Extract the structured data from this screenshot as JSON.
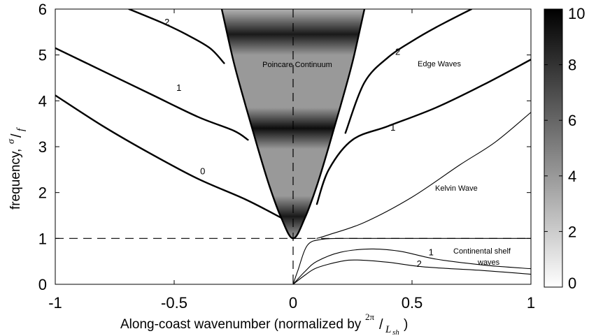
{
  "chart_data": {
    "type": "line",
    "xlabel": "Along-coast wavenumber (normalized by",
    "xlabel_fraction_num": "2π",
    "xlabel_fraction_den": "L",
    "xlabel_fraction_sub": "sh",
    "xlabel_close": ")",
    "ylabel": "frequency,",
    "ylabel_fraction_num": "σ",
    "ylabel_fraction_den": "f",
    "xlim": [
      -1,
      1
    ],
    "ylim": [
      0,
      6
    ],
    "x_ticks": [
      -1,
      -0.5,
      0,
      0.5,
      1
    ],
    "x_tick_labels": [
      "-1",
      "-0.5",
      "0",
      "0.5",
      "1"
    ],
    "y_ticks": [
      0,
      1,
      2,
      3,
      4,
      5,
      6
    ],
    "y_tick_labels": [
      "0",
      "1",
      "2",
      "3",
      "4",
      "5",
      "6"
    ],
    "grid": false,
    "annotations": {
      "poincare": "Poincare Continuum",
      "edge_waves": "Edge Waves",
      "kelvin": "Kelvin Wave",
      "shelf_line1": "Continental shelf",
      "shelf_line2": "waves"
    },
    "colorbar": {
      "range": [
        0,
        10
      ],
      "ticks": [
        0,
        2,
        4,
        6,
        8,
        10
      ],
      "tick_labels": [
        "0",
        "2",
        "4",
        "6",
        "8",
        "10"
      ],
      "colors": [
        "#ffffff",
        "#000000"
      ]
    },
    "poincare_boundary": {
      "min_frequency": 1,
      "x": [
        -0.3,
        -0.25,
        -0.2,
        -0.15,
        -0.1,
        -0.05,
        0,
        0.05,
        0.1,
        0.15,
        0.2,
        0.25,
        0.3
      ],
      "y": [
        6.0,
        4.85,
        3.9,
        3.0,
        2.15,
        1.45,
        1.0,
        1.45,
        2.15,
        3.0,
        3.9,
        4.85,
        6.0
      ]
    },
    "intensity_bands": [
      {
        "y": 5.45,
        "level": 9
      },
      {
        "y": 3.4,
        "level": 9.5
      },
      {
        "y": 1.48,
        "level": 9
      }
    ],
    "series": [
      {
        "label": "0",
        "style": "bold",
        "x": [
          -1,
          -0.8,
          -0.6,
          -0.4,
          -0.2,
          -0.05
        ],
        "y": [
          4.12,
          3.45,
          2.85,
          2.3,
          1.85,
          1.45
        ]
      },
      {
        "label": "1",
        "style": "bold",
        "x": [
          -1,
          -0.8,
          -0.6,
          -0.4,
          -0.25,
          -0.19
        ],
        "y": [
          5.15,
          4.65,
          4.15,
          3.65,
          3.35,
          3.15
        ]
      },
      {
        "label": "2",
        "style": "bold",
        "x": [
          -0.69,
          -0.55,
          -0.45,
          -0.35,
          -0.29
        ],
        "y": [
          6.0,
          5.7,
          5.45,
          5.15,
          4.82
        ]
      },
      {
        "label": "1",
        "style": "bold",
        "x": [
          0.1,
          0.15,
          0.25,
          0.4,
          0.6,
          0.8,
          1.0
        ],
        "y": [
          1.75,
          2.5,
          3.15,
          3.45,
          3.85,
          4.35,
          4.9
        ]
      },
      {
        "label": "2",
        "style": "bold",
        "x": [
          0.22,
          0.3,
          0.4,
          0.5,
          0.6,
          0.75
        ],
        "y": [
          3.3,
          4.4,
          4.95,
          5.3,
          5.6,
          6.0
        ]
      },
      {
        "label": "Kelvin",
        "style": "thin",
        "x": [
          0.1,
          0.15,
          0.3,
          0.5,
          0.7,
          0.85,
          1.0
        ],
        "y": [
          1.0,
          1.08,
          1.35,
          1.9,
          2.6,
          3.1,
          3.75
        ]
      },
      {
        "label": "shelf-0",
        "style": "thin",
        "x": [
          0,
          0.02,
          0.06,
          0.12,
          0.2,
          0.3,
          0.45,
          0.6,
          0.8,
          1.0
        ],
        "y": [
          0,
          0.3,
          0.85,
          0.98,
          1.0,
          1.0,
          1.0,
          1.0,
          1.0,
          1.0
        ]
      },
      {
        "label": "1",
        "style": "thin",
        "x": [
          0,
          0.05,
          0.1,
          0.2,
          0.33,
          0.45,
          0.6,
          0.8,
          1.0
        ],
        "y": [
          0,
          0.28,
          0.5,
          0.7,
          0.77,
          0.72,
          0.55,
          0.42,
          0.34
        ]
      },
      {
        "label": "2",
        "style": "thin",
        "x": [
          0,
          0.05,
          0.1,
          0.2,
          0.27,
          0.4,
          0.55,
          0.8,
          1.0
        ],
        "y": [
          0,
          0.2,
          0.36,
          0.5,
          0.53,
          0.48,
          0.38,
          0.3,
          0.22
        ]
      }
    ],
    "curve_labels": [
      {
        "text": "2",
        "x": -0.53,
        "y": 5.65
      },
      {
        "text": "1",
        "x": -0.48,
        "y": 4.22
      },
      {
        "text": "0",
        "x": -0.38,
        "y": 2.4
      },
      {
        "text": "2",
        "x": 0.44,
        "y": 5.0
      },
      {
        "text": "1",
        "x": 0.42,
        "y": 3.35
      },
      {
        "text": "1",
        "x": 0.58,
        "y": 0.63
      },
      {
        "text": "2",
        "x": 0.53,
        "y": 0.38
      }
    ],
    "reference_lines": {
      "horizontal_y": 1,
      "vertical_x": 0
    }
  }
}
